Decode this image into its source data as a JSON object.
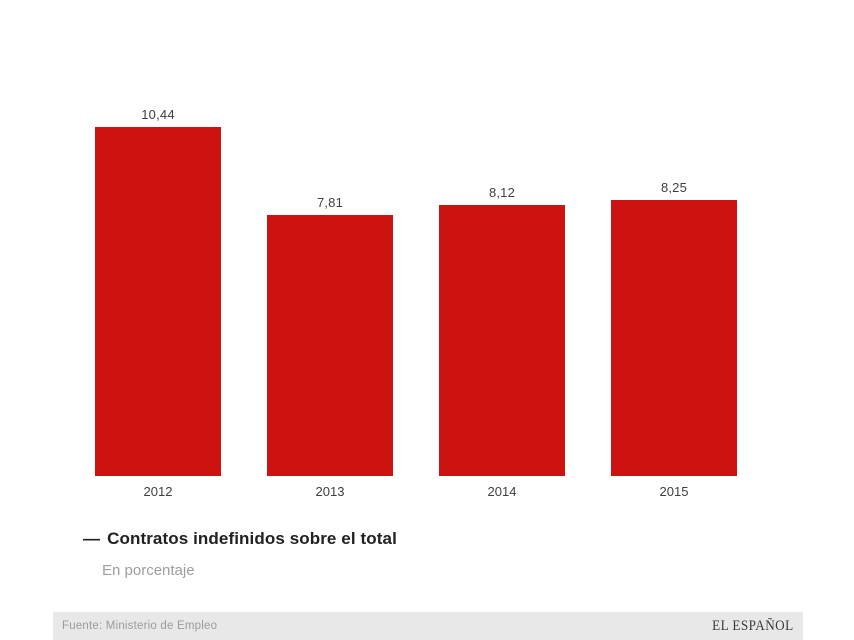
{
  "chart_data": {
    "type": "bar",
    "categories": [
      "2012",
      "2013",
      "2014",
      "2015"
    ],
    "values": [
      10.44,
      7.81,
      8.12,
      8.25
    ],
    "value_labels": [
      "10,44",
      "7,81",
      "8,12",
      "8,25"
    ],
    "title": "Contratos indefinidos sobre el total",
    "subtitle": "En porcentaje",
    "xlabel": "",
    "ylabel": "",
    "ylim": [
      0,
      10.44
    ],
    "grid": false,
    "legend_position": "bottom-left",
    "bar_color": "#cc1310"
  },
  "legend": {
    "dash": "—",
    "label": "Contratos indefinidos sobre el total",
    "subtitle": "En porcentaje"
  },
  "footer": {
    "source": "Fuente: Ministerio de Empleo",
    "brand": "EL ESPAÑOL"
  }
}
